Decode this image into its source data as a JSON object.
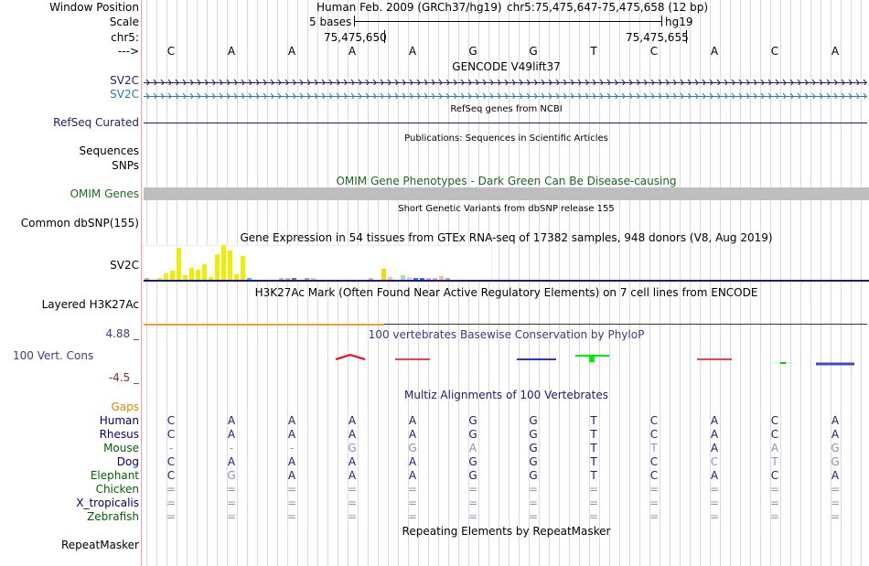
{
  "header": {
    "window_position_label": "Window Position",
    "scale_label": "Scale",
    "chrom_label": "chr5:",
    "strand_label": "--->",
    "assembly": "Human Feb. 2009 (GRCh37/hg19)",
    "position": "chr5:75,475,647-75,475,658 (12 bp)",
    "scale_text": "5 bases",
    "scale_db": "hg19",
    "coord_left": "75,475,650",
    "coord_right": "75,475,655",
    "bases": [
      "C",
      "A",
      "A",
      "A",
      "A",
      "G",
      "G",
      "T",
      "C",
      "A",
      "C",
      "A"
    ]
  },
  "tracks": {
    "gencode": {
      "title": "GENCODE V49lift37",
      "items": [
        "SV2C",
        "SV2C"
      ]
    },
    "refseq": {
      "title": "RefSeq genes from NCBI",
      "label": "RefSeq Curated"
    },
    "pubs": {
      "title": "Publications: Sequences in Scientific Articles",
      "label1": "Sequences",
      "label2": "SNPs"
    },
    "omim": {
      "title": "OMIM Gene Phenotypes - Dark Green Can Be Disease-causing",
      "label": "OMIM Genes"
    },
    "dbsnp": {
      "title": "Short Genetic Variants from dbSNP release 155",
      "label": "Common dbSNP(155)"
    },
    "gtex": {
      "title": "Gene Expression in 54 tissues from GTEx RNA-seq of 17382 samples, 948 donors (V8, Aug 2019)",
      "label": "SV2C"
    },
    "h3k27ac": {
      "title": "H3K27Ac Mark (Often Found Near Active Regulatory Elements) on 7 cell lines from ENCODE",
      "label": "Layered H3K27Ac"
    },
    "phylop": {
      "title": "100 vertebrates Basewise Conservation by PhyloP",
      "label": "100 Vert. Cons",
      "max": "4.88 _",
      "min": "-4.5 _"
    },
    "multiz": {
      "title": "Multiz Alignments of 100 Vertebrates",
      "gaps_label": "Gaps",
      "species": [
        {
          "name": "Human",
          "color": "#000080",
          "seq": [
            "C",
            "A",
            "A",
            "A",
            "A",
            "G",
            "G",
            "T",
            "C",
            "A",
            "C",
            "A"
          ],
          "faded": []
        },
        {
          "name": "Rhesus",
          "color": "#000080",
          "seq": [
            "C",
            "A",
            "A",
            "A",
            "A",
            "G",
            "G",
            "T",
            "C",
            "A",
            "C",
            "A"
          ],
          "faded": []
        },
        {
          "name": "Mouse",
          "color": "#006400",
          "seq": [
            "-",
            "-",
            "-",
            "G",
            "G",
            "A",
            "G",
            "T",
            "T",
            "A",
            "A",
            "G"
          ],
          "faded": [
            0,
            1,
            2,
            3,
            4,
            5,
            8,
            10,
            11
          ]
        },
        {
          "name": "Dog",
          "color": "#000080",
          "seq": [
            "C",
            "A",
            "A",
            "A",
            "A",
            "G",
            "G",
            "T",
            "C",
            "C",
            "T",
            "G"
          ],
          "faded": [
            9,
            10,
            11
          ]
        },
        {
          "name": "Elephant",
          "color": "#006400",
          "seq": [
            "C",
            "G",
            "A",
            "A",
            "A",
            "G",
            "G",
            "T",
            "C",
            "A",
            "C",
            "A"
          ],
          "faded": [
            1
          ]
        },
        {
          "name": "Chicken",
          "color": "#006400",
          "seq": [
            "=",
            "=",
            "=",
            "=",
            "=",
            "=",
            "=",
            "=",
            "=",
            "=",
            "=",
            "="
          ],
          "faded": [
            0,
            1,
            2,
            3,
            4,
            5,
            6,
            7,
            8,
            9,
            10,
            11
          ]
        },
        {
          "name": "X_tropicalis",
          "color": "#000080",
          "seq": [
            "=",
            "=",
            "=",
            "=",
            "=",
            "=",
            "=",
            "=",
            "=",
            "=",
            "=",
            "="
          ],
          "faded": [
            0,
            1,
            2,
            3,
            4,
            5,
            6,
            7,
            8,
            9,
            10,
            11
          ]
        },
        {
          "name": "Zebrafish",
          "color": "#006400",
          "seq": [
            "=",
            "=",
            "=",
            "=",
            "=",
            "=",
            "=",
            "=",
            "=",
            "=",
            "=",
            "="
          ],
          "faded": [
            0,
            1,
            2,
            3,
            4,
            5,
            6,
            7,
            8,
            9,
            10,
            11
          ]
        }
      ]
    },
    "repeatmasker": {
      "title": "Repeating Elements by RepeatMasker",
      "label": "RepeatMasker"
    }
  },
  "chart_data": {
    "type": "bar",
    "title": "Gene Expression in 54 tissues from GTEx RNA-seq of 17382 samples, 948 donors (V8, Aug 2019)",
    "values": [
      0.5,
      0,
      1,
      7,
      10,
      35,
      5,
      13,
      11,
      17,
      3,
      28,
      38,
      32,
      6,
      26,
      0.5,
      0,
      0,
      0,
      0,
      1.5,
      1,
      2,
      0,
      1.5,
      1,
      0,
      0,
      0,
      0,
      0,
      0,
      0,
      0,
      1,
      0,
      12,
      3,
      0,
      5,
      3,
      1,
      1,
      1,
      1,
      4,
      2,
      0,
      0,
      0,
      0,
      0,
      0
    ],
    "colors": [
      "#c8b89a",
      "#eeee00",
      "#eeee00",
      "#eeee00",
      "#eeee00",
      "#eeee00",
      "#eeee00",
      "#eeee00",
      "#eeee00",
      "#eeee00",
      "#eeee00",
      "#eeee00",
      "#eeee00",
      "#eeee00",
      "#eeee00",
      "#eeee00",
      "#33cccc",
      "#ccc",
      "#ccc",
      "#ccc",
      "#ccc",
      "#d2b48c",
      "#d2b48c",
      "#8b7355",
      "#ccc",
      "#c8a070",
      "#f0c0c0",
      "#ccc",
      "#ccc",
      "#ccc",
      "#ccc",
      "#ccc",
      "#ccc",
      "#ccc",
      "#ccc",
      "#c8b89a",
      "#ccc",
      "#ffd700",
      "#ffb6c1",
      "#ccc",
      "#a6e3a6",
      "#d3d3d3",
      "#4169e1",
      "#4169e1",
      "#bbbbbb",
      "#bbbbbb",
      "#ffc080",
      "#aaaaaa",
      "#ccc",
      "#ccc",
      "#ccc",
      "#ccc",
      "#ccc",
      "#ccc"
    ]
  }
}
